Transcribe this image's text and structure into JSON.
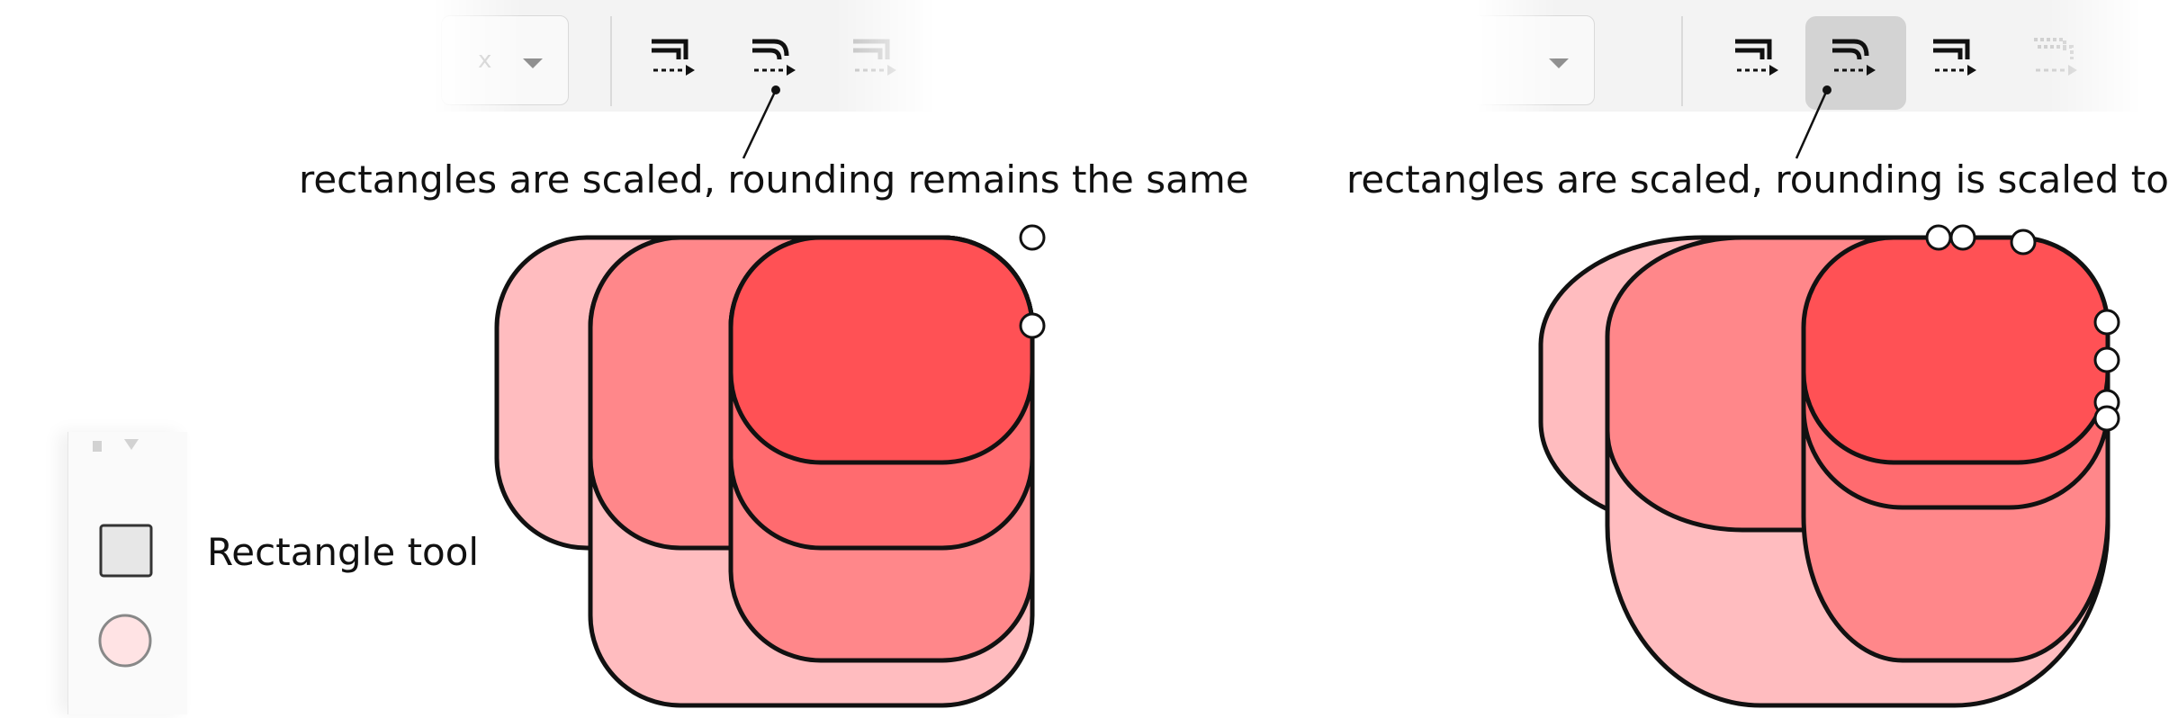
{
  "left_panel": {
    "annotation": "rectangles are scaled,  rounding remains the same",
    "combo_text": "x"
  },
  "right_panel": {
    "annotation": "rectangles are scaled,  rounding is scaled too",
    "active_button": "scale-rounding"
  },
  "tool_panel": {
    "rectangle_tool_label": "Rectangle tool"
  },
  "icons": {
    "tool_a": "transform-rect-icon",
    "tool_b": "scale-rounding-icon",
    "tool_c": "transform-gradient-icon",
    "tool_d": "transform-pattern-icon",
    "rect": "rectangle-tool-icon",
    "circle": "ellipse-tool-icon"
  },
  "colors": {
    "fill_light": "#ffbcbf",
    "fill_mid": "#ff878a",
    "fill_strong": "#ff5155",
    "stroke": "#111111",
    "active_button_bg": "#d3d3d3"
  }
}
